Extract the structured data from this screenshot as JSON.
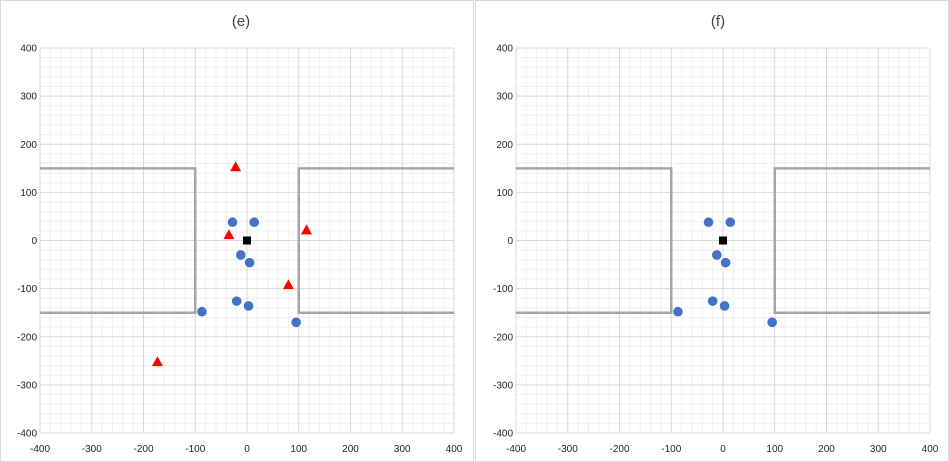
{
  "chart_data": [
    {
      "type": "scatter",
      "title": "(e)",
      "xlim": [
        -400,
        400
      ],
      "ylim": [
        -400,
        400
      ],
      "x_ticks": [
        "-400",
        "-300",
        "-200",
        "-100",
        "0",
        "100",
        "200",
        "300",
        "400"
      ],
      "y_ticks": [
        "400",
        "300",
        "200",
        "100",
        "0",
        "-100",
        "-200",
        "-300",
        "-400"
      ],
      "grid": true,
      "boundary_lines": [
        {
          "points": [
            [
              -400,
              150
            ],
            [
              -100,
              150
            ],
            [
              -100,
              -150
            ],
            [
              -400,
              -150
            ]
          ],
          "color": "#a6a6a6"
        },
        {
          "points": [
            [
              400,
              150
            ],
            [
              100,
              150
            ],
            [
              100,
              -150
            ],
            [
              400,
              -150
            ]
          ],
          "color": "#a6a6a6"
        }
      ],
      "series": [
        {
          "marker": "circle",
          "color": "#4472c4",
          "points": [
            [
              -28,
              38
            ],
            [
              14,
              38
            ],
            [
              -12,
              -30
            ],
            [
              5,
              -46
            ],
            [
              -20,
              -126
            ],
            [
              3,
              -136
            ],
            [
              -87,
              -148
            ],
            [
              95,
              -170
            ]
          ]
        },
        {
          "marker": "triangle",
          "color": "#ff0000",
          "points": [
            [
              -22,
              153
            ],
            [
              -35,
              12
            ],
            [
              115,
              22
            ],
            [
              80,
              -92
            ],
            [
              -173,
              -252
            ]
          ]
        },
        {
          "marker": "square",
          "color": "#000000",
          "points": [
            [
              0,
              0
            ]
          ]
        }
      ]
    },
    {
      "type": "scatter",
      "title": "(f)",
      "xlim": [
        -400,
        400
      ],
      "ylim": [
        -400,
        400
      ],
      "x_ticks": [
        "-400",
        "-300",
        "-200",
        "-100",
        "0",
        "100",
        "200",
        "300",
        "400"
      ],
      "y_ticks": [
        "400",
        "300",
        "200",
        "100",
        "0",
        "-100",
        "-200",
        "-300",
        "-400"
      ],
      "grid": true,
      "boundary_lines": [
        {
          "points": [
            [
              -400,
              150
            ],
            [
              -100,
              150
            ],
            [
              -100,
              -150
            ],
            [
              -400,
              -150
            ]
          ],
          "color": "#a6a6a6"
        },
        {
          "points": [
            [
              400,
              150
            ],
            [
              100,
              150
            ],
            [
              100,
              -150
            ],
            [
              400,
              -150
            ]
          ],
          "color": "#a6a6a6"
        }
      ],
      "series": [
        {
          "marker": "circle",
          "color": "#4472c4",
          "points": [
            [
              -28,
              38
            ],
            [
              14,
              38
            ],
            [
              -12,
              -30
            ],
            [
              5,
              -46
            ],
            [
              -20,
              -126
            ],
            [
              3,
              -136
            ],
            [
              -87,
              -148
            ],
            [
              95,
              -170
            ]
          ]
        },
        {
          "marker": "square",
          "color": "#000000",
          "points": [
            [
              0,
              0
            ]
          ]
        }
      ]
    }
  ]
}
